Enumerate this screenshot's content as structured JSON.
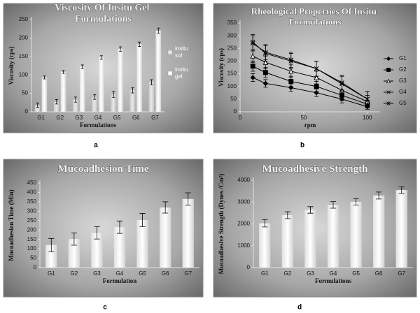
{
  "chart_data": [
    {
      "type": "bar",
      "panel_label": "a",
      "title": "Viscosity Of Insitu Gel Formulations",
      "x_label": "Formulations",
      "y_label": "Viscosity (cps)",
      "categories": [
        "G1",
        "G2",
        "G3",
        "G4",
        "G5",
        "G6",
        "G7"
      ],
      "series": [
        {
          "name": "insitu sol",
          "color": "#e8e8e8",
          "values": [
            18,
            27,
            33,
            40,
            47,
            58,
            80
          ],
          "errors": [
            6,
            6,
            7,
            6,
            8,
            7,
            7
          ]
        },
        {
          "name": "insitu gel",
          "color": "#ffffff",
          "values": [
            93,
            108,
            122,
            147,
            170,
            183,
            220
          ],
          "errors": [
            4,
            4,
            5,
            5,
            6,
            6,
            7
          ]
        }
      ],
      "ylim": [
        0,
        250
      ],
      "yticks": [
        0,
        50,
        100,
        150,
        200,
        250
      ],
      "legend": "right"
    },
    {
      "type": "line",
      "panel_label": "b",
      "title": "Rheological Properties Of Insitu Formulations",
      "x_label": "rpm",
      "y_label": "Viscosity (cps)",
      "x": [
        10,
        20,
        40,
        60,
        80,
        100
      ],
      "series": [
        {
          "name": "G1",
          "color": "#000000",
          "marker": "diamond",
          "values": [
            135,
            112,
            95,
            75,
            50,
            20
          ],
          "errors": [
            15,
            15,
            15,
            15,
            15,
            10
          ]
        },
        {
          "name": "G2",
          "color": "#000000",
          "marker": "square",
          "values": [
            180,
            155,
            120,
            100,
            65,
            30
          ],
          "errors": [
            20,
            20,
            20,
            20,
            20,
            15
          ]
        },
        {
          "name": "G3",
          "color": "#000000",
          "marker": "triangle",
          "values": [
            220,
            195,
            160,
            135,
            85,
            40
          ],
          "errors": [
            25,
            25,
            25,
            25,
            25,
            25
          ]
        },
        {
          "name": "G4",
          "color": "#000000",
          "marker": "x",
          "values": [
            270,
            235,
            205,
            170,
            115,
            50
          ],
          "errors": [
            30,
            30,
            30,
            30,
            30,
            30
          ]
        },
        {
          "name": "G5",
          "color": "#000000",
          "marker": "star",
          "values": [
            275,
            230,
            200,
            170,
            110,
            50
          ],
          "errors": [
            30,
            30,
            30,
            30,
            30,
            30
          ]
        }
      ],
      "xlim": [
        0,
        110
      ],
      "xticks": [
        0,
        50,
        100
      ],
      "ylim": [
        0,
        350
      ],
      "yticks": [
        0,
        50,
        100,
        150,
        200,
        250,
        300,
        350
      ],
      "legend": "right"
    },
    {
      "type": "bar",
      "panel_label": "c",
      "title": "Mucoadhesion Time",
      "x_label": "Formulation",
      "y_label": "Mucoadhesion Time (Min)",
      "categories": [
        "G1",
        "G2",
        "G3",
        "G4",
        "G5",
        "G6",
        "G7"
      ],
      "values": [
        120,
        152,
        185,
        215,
        253,
        320,
        365
      ],
      "errors": [
        35,
        33,
        33,
        33,
        35,
        30,
        33
      ],
      "color": "#ffffff",
      "ylim": [
        0,
        450
      ],
      "yticks": [
        0,
        50,
        100,
        150,
        200,
        250,
        300,
        350,
        400,
        450
      ]
    },
    {
      "type": "bar",
      "panel_label": "d",
      "title": "Mucoadhesive Strength",
      "x_label": "Formulations",
      "y_label": "Mucoadhesive Strength (Dynes /Cm²)",
      "categories": [
        "G1",
        "G2",
        "G3",
        "G4",
        "G5",
        "G6",
        "G7"
      ],
      "values": [
        2030,
        2400,
        2640,
        2870,
        3010,
        3300,
        3550
      ],
      "errors": [
        170,
        160,
        150,
        150,
        150,
        160,
        150
      ],
      "color": "#ffffff",
      "ylim": [
        0,
        4000
      ],
      "yticks": [
        0,
        1000,
        2000,
        3000,
        4000
      ]
    }
  ]
}
